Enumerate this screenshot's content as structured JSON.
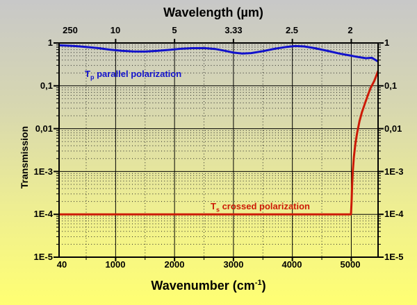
{
  "chart_data": {
    "type": "line",
    "title_top": "Wavelength (µm)",
    "xlabel": {
      "pre": "Wavenumber (cm",
      "sup": "-1",
      "post": ")"
    },
    "ylabel": "Transmission",
    "x_axis": {
      "min": 40,
      "max": 5455,
      "major_ticks": [
        1000,
        2000,
        3000,
        4000,
        5000
      ],
      "minor_ticks": [
        500,
        1500,
        2500,
        3500,
        4500
      ],
      "tick_labels": [
        "40",
        "1000",
        "2000",
        "3000",
        "4000",
        "5000"
      ],
      "tick_values": [
        40,
        1000,
        2000,
        3000,
        4000,
        5000
      ]
    },
    "top_axis": {
      "tick_labels": [
        "250",
        "10",
        "5",
        "3.33",
        "2.5",
        "2"
      ],
      "tick_wavenumbers": [
        40,
        1000,
        2000,
        3003,
        4000,
        5000
      ]
    },
    "y_axis": {
      "scale": "log",
      "min": 1e-05,
      "max": 1,
      "tick_labels": [
        "1",
        "0,1",
        "0,01",
        "1E-3",
        "1E-4",
        "1E-5"
      ],
      "tick_values": [
        1,
        0.1,
        0.01,
        0.001,
        0.0001,
        1e-05
      ],
      "grid": true
    },
    "series": [
      {
        "name": "Tp parallel polarization",
        "label": {
          "t": "T",
          "sub": "p",
          "rest": " parallel polarization"
        },
        "color": "#1212cc",
        "x": [
          40,
          150,
          300,
          500,
          700,
          900,
          1100,
          1300,
          1500,
          1700,
          1900,
          2100,
          2300,
          2500,
          2700,
          2850,
          3000,
          3150,
          3300,
          3500,
          3700,
          3900,
          4050,
          4200,
          4350,
          4500,
          4650,
          4800,
          4950,
          5100,
          5250,
          5350,
          5455
        ],
        "y": [
          0.88,
          0.87,
          0.85,
          0.81,
          0.76,
          0.7,
          0.66,
          0.635,
          0.63,
          0.655,
          0.69,
          0.73,
          0.755,
          0.76,
          0.72,
          0.66,
          0.595,
          0.565,
          0.58,
          0.645,
          0.73,
          0.81,
          0.85,
          0.83,
          0.77,
          0.7,
          0.63,
          0.565,
          0.52,
          0.475,
          0.44,
          0.45,
          0.37
        ]
      },
      {
        "name": "Ts crossed polarization",
        "label": {
          "t": "T",
          "sub": "s",
          "rest": " crossed polarization"
        },
        "color": "#cc1a06",
        "x": [
          40,
          4995,
          5005,
          5015,
          5025,
          5045,
          5070,
          5100,
          5140,
          5180,
          5230,
          5280,
          5330,
          5390,
          5455
        ],
        "y": [
          0.0001,
          0.0001,
          0.0002,
          0.0005,
          0.001,
          0.0022,
          0.0045,
          0.008,
          0.015,
          0.024,
          0.038,
          0.06,
          0.09,
          0.13,
          0.22
        ]
      }
    ]
  }
}
